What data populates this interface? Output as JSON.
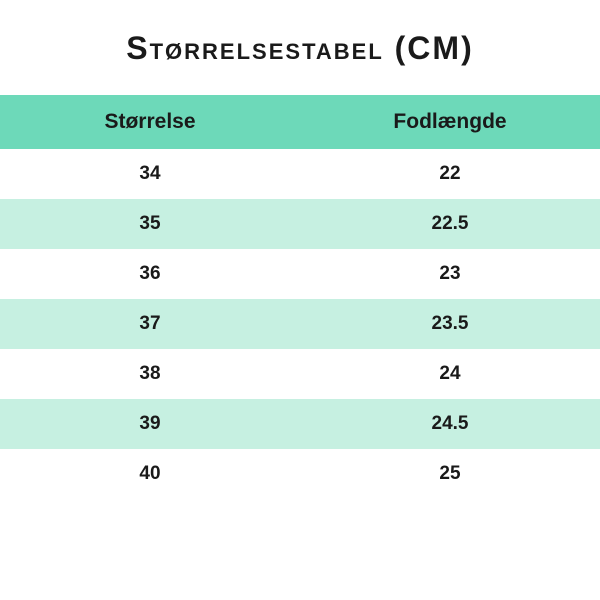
{
  "title": "Størrelsestabel (CM)",
  "columns": [
    "Størrelse",
    "Fodlængde"
  ],
  "rows": [
    [
      "34",
      "22"
    ],
    [
      "35",
      "22.5"
    ],
    [
      "36",
      "23"
    ],
    [
      "37",
      "23.5"
    ],
    [
      "38",
      "24"
    ],
    [
      "39",
      "24.5"
    ],
    [
      "40",
      "25"
    ]
  ],
  "colors": {
    "header_bg": "#6dd9b9",
    "stripe_bg": "#c6f0e1",
    "plain_bg": "#ffffff",
    "text": "#1a1a1a"
  }
}
